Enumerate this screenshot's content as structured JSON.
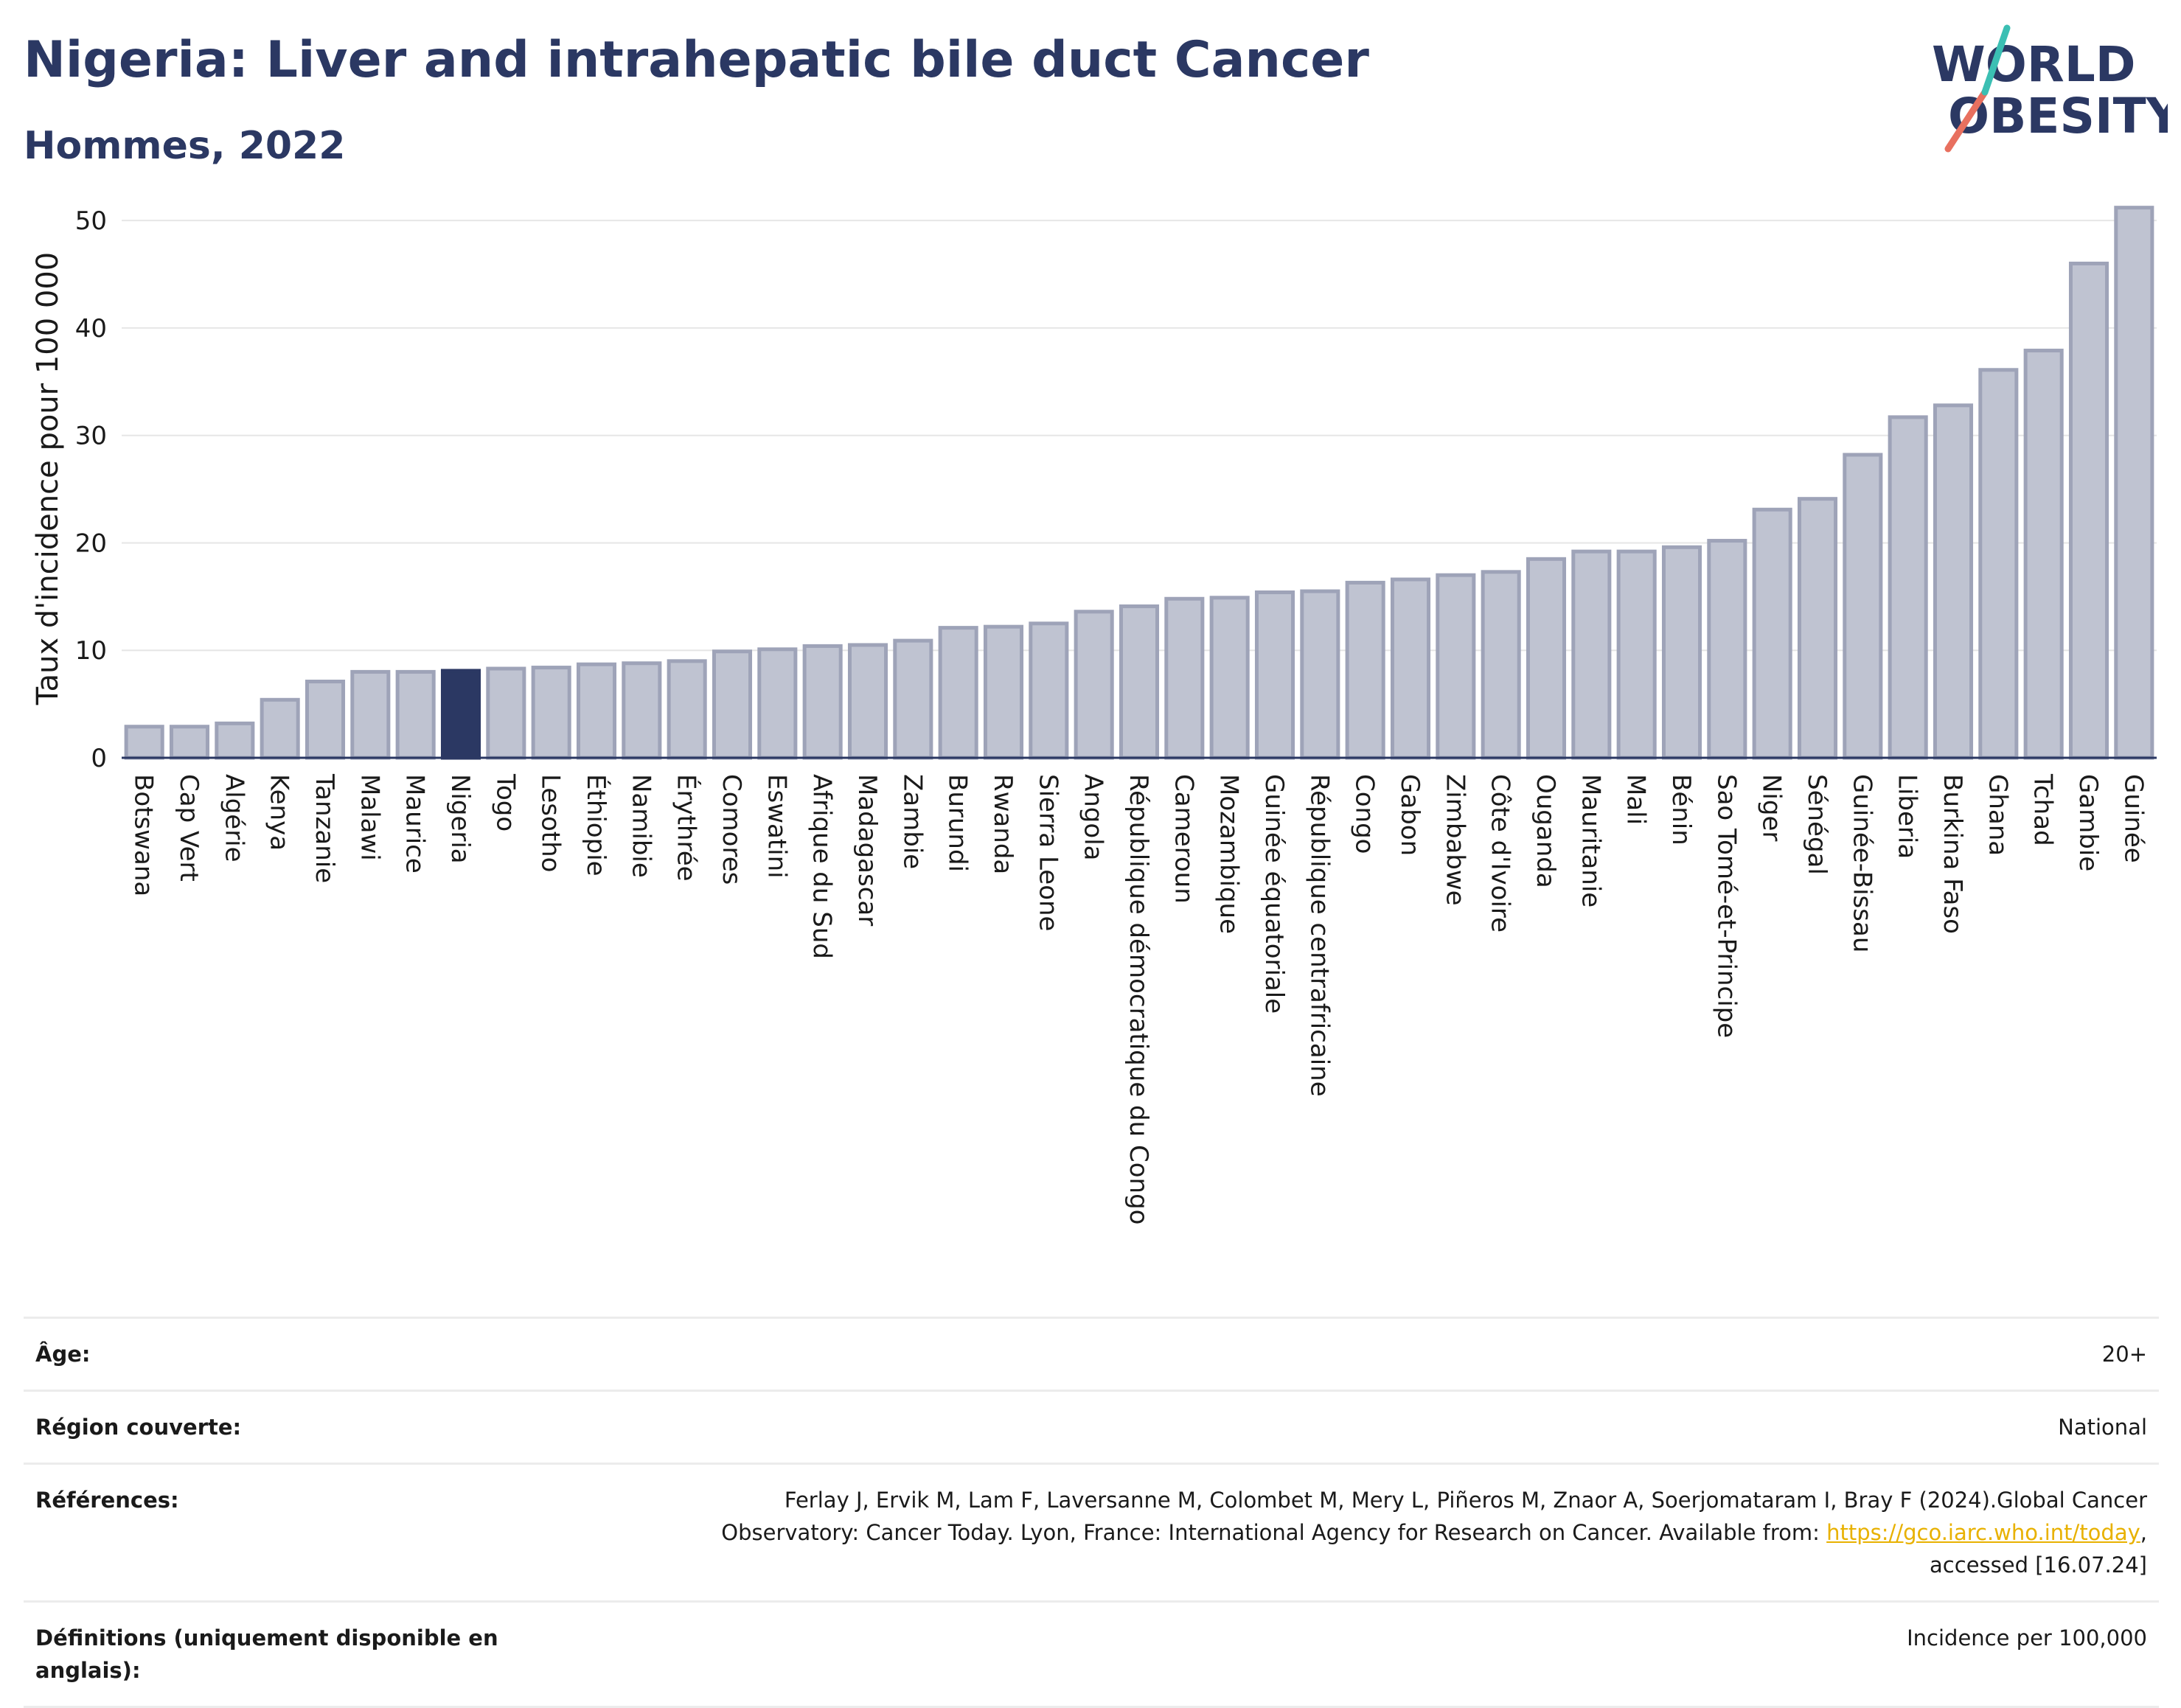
{
  "header": {
    "title": "Nigeria: Liver and intrahepatic bile duct Cancer",
    "subtitle": "Hommes, 2022"
  },
  "logo": {
    "line1": "WORLD",
    "line2": "OBESITY",
    "colors": {
      "text": "#2b3863",
      "slash_teal": "#3bbfb3",
      "slash_coral": "#e8705f"
    }
  },
  "chart_data": {
    "type": "bar",
    "title": "",
    "xlabel": "",
    "ylabel": "Taux d'incidence pour 100 000",
    "ylim": [
      0,
      52
    ],
    "yticks": [
      0,
      10,
      20,
      30,
      40,
      50
    ],
    "grid": true,
    "highlight": "Nigeria",
    "colors": {
      "bar": "#bfc3d1",
      "bar_edge": "#9ea3b8",
      "highlight": "#2b3863",
      "axis": "#2b3863",
      "grid": "#e6e6e6"
    },
    "categories": [
      "Botswana",
      "Cap Vert",
      "Algérie",
      "Kenya",
      "Tanzanie",
      "Malawi",
      "Maurice",
      "Nigeria",
      "Togo",
      "Lesotho",
      "Éthiopie",
      "Namibie",
      "Érythrée",
      "Comores",
      "Eswatini",
      "Afrique du Sud",
      "Madagascar",
      "Zambie",
      "Burundi",
      "Rwanda",
      "Sierra Leone",
      "Angola",
      "République démocratique du Congo",
      "Cameroun",
      "Mozambique",
      "Guinée équatoriale",
      "République centrafricaine",
      "Congo",
      "Gabon",
      "Zimbabwe",
      "Côte d'Ivoire",
      "Ouganda",
      "Mauritanie",
      "Mali",
      "Bénin",
      "Sao Tomé-et-Principe",
      "Niger",
      "Sénégal",
      "Guinée-Bissau",
      "Liberia",
      "Burkina Faso",
      "Ghana",
      "Tchad",
      "Gambie",
      "Guinée"
    ],
    "values": [
      2.9,
      2.9,
      3.2,
      5.4,
      7.1,
      8.0,
      8.0,
      8.1,
      8.3,
      8.4,
      8.7,
      8.8,
      9.0,
      9.9,
      10.1,
      10.4,
      10.5,
      10.9,
      12.1,
      12.2,
      12.5,
      13.6,
      14.1,
      14.8,
      14.9,
      15.4,
      15.5,
      16.3,
      16.6,
      17.0,
      17.3,
      18.5,
      19.2,
      19.2,
      19.6,
      20.2,
      23.1,
      24.1,
      28.2,
      31.7,
      32.8,
      36.1,
      37.9,
      46.0,
      51.2
    ]
  },
  "info": {
    "age_label": "Âge:",
    "age_value": "20+",
    "region_label": "Région couverte:",
    "region_value": "National",
    "ref_label": "Références:",
    "ref_line1": "Ferlay J, Ervik M, Lam F, Laversanne M, Colombet M, Mery L, Piñeros M, Znaor A, Soerjomataram I, Bray F (2024).Global Cancer",
    "ref_line2": "Observatory: Cancer Today. Lyon, France: International Agency for Research on Cancer. Available from: ",
    "ref_link": "https://gco.iarc.who.int/today",
    "ref_line2_end": ",",
    "ref_line3": "accessed [16.07.24]",
    "def_label": "Définitions (uniquement disponible en anglais):",
    "def_value": "Incidence per 100,000"
  }
}
